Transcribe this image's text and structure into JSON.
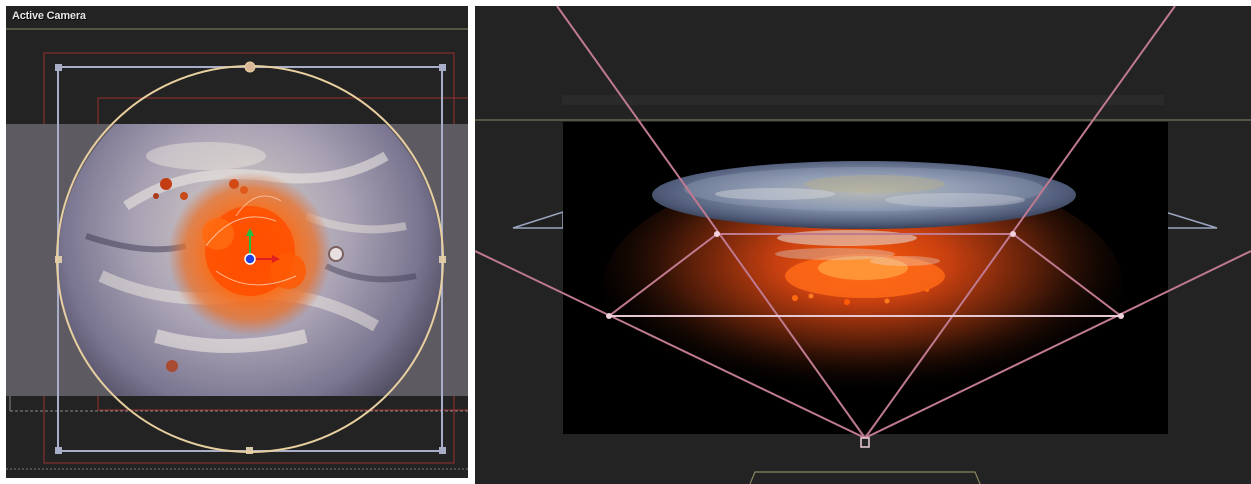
{
  "left_viewport": {
    "title": "Active Camera"
  },
  "colors": {
    "viewport_bg": "#232323",
    "frame_red": "#9a2f2f",
    "handle_box": "#a9aec8",
    "handle_circle": "#e8cfa0",
    "guide_yellow": "#8a8660",
    "camera_frustum": "#c07a90",
    "axis_x": "#e02020",
    "axis_y": "#20c040",
    "axis_z": "#2040e0"
  },
  "icons": {
    "transform_gizmo": "move-gizmo-icon",
    "scale_handle": "square-handle-icon",
    "rotate_handle": "circle-handle-icon"
  }
}
